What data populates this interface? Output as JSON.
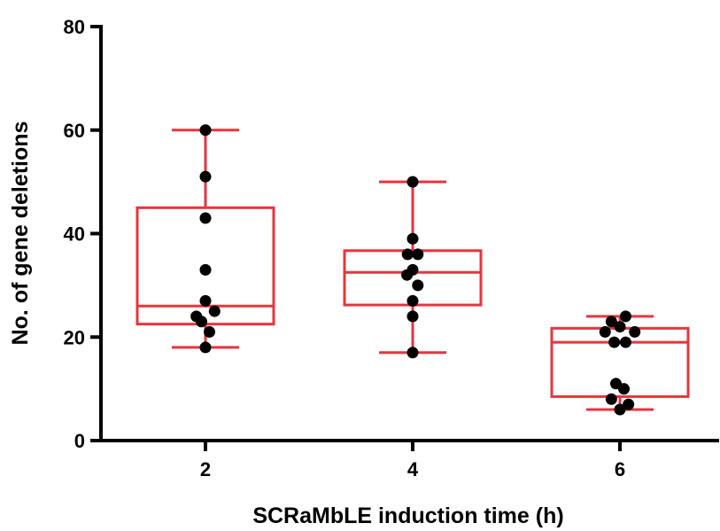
{
  "chart_data": {
    "type": "box",
    "title": "",
    "xlabel": "SCRaMbLE induction time (h)",
    "ylabel": "No. of gene deletions",
    "ylim": [
      0,
      80
    ],
    "yticks": [
      0,
      20,
      40,
      60,
      80
    ],
    "grid": false,
    "categories": [
      "2",
      "4",
      "6"
    ],
    "boxes": [
      {
        "category": "2",
        "min": 18,
        "q1": 22.5,
        "median": 26,
        "q3": 45,
        "max": 60
      },
      {
        "category": "4",
        "min": 17,
        "q1": 26.2,
        "median": 32.5,
        "q3": 36.7,
        "max": 50
      },
      {
        "category": "6",
        "min": 6,
        "q1": 8.5,
        "median": 19,
        "q3": 21.7,
        "max": 24
      }
    ],
    "points": [
      {
        "category": "2",
        "values": [
          60,
          51,
          43,
          33,
          27,
          25,
          24,
          23,
          21,
          18
        ],
        "offsets": [
          0,
          0,
          0,
          0,
          0,
          0.16,
          -0.16,
          -0.07,
          0.07,
          0
        ]
      },
      {
        "category": "4",
        "values": [
          50,
          39,
          36,
          36,
          33,
          32,
          30,
          27,
          24,
          17
        ],
        "offsets": [
          0,
          0,
          -0.09,
          0.09,
          0,
          -0.1,
          0.09,
          0,
          0,
          0
        ]
      },
      {
        "category": "6",
        "values": [
          24,
          23,
          22,
          21,
          21,
          19,
          19,
          11,
          10,
          8,
          7,
          6
        ],
        "offsets": [
          0.1,
          -0.15,
          0,
          -0.26,
          0.26,
          -0.1,
          0.1,
          -0.07,
          0.07,
          -0.15,
          0.15,
          0
        ]
      }
    ],
    "colors": {
      "box": "#e8343e",
      "point": "#000000",
      "axis": "#000000"
    }
  }
}
